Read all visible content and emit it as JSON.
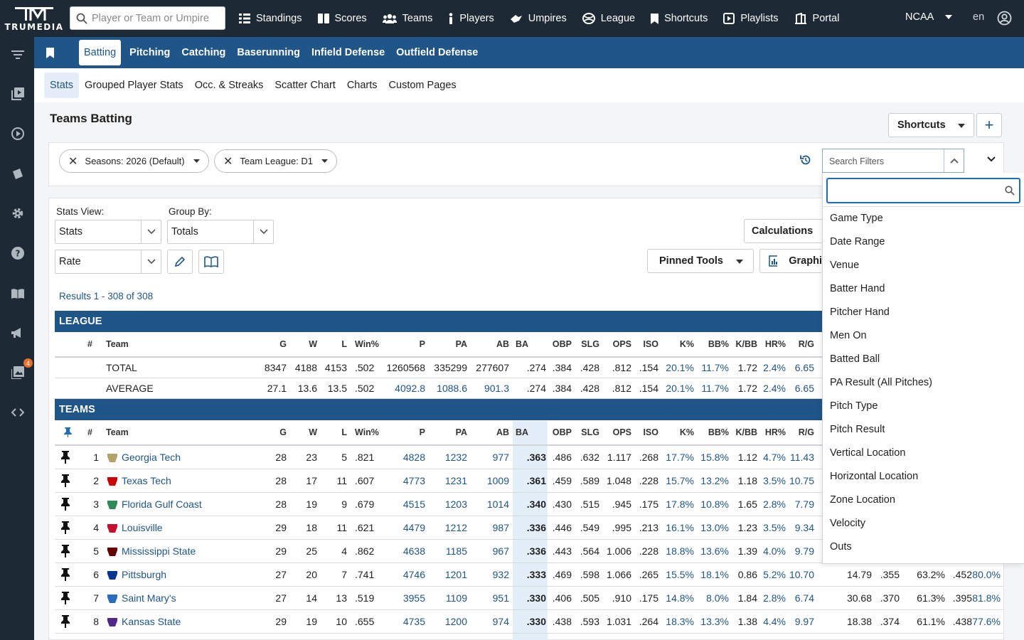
{
  "app": {
    "logo_text": "TRUMEDIA",
    "search_placeholder": "Player or Team or Umpire",
    "league": "NCAA",
    "lang": "en"
  },
  "topnav": [
    {
      "label": "Standings",
      "icon": "list-icon"
    },
    {
      "label": "Scores",
      "icon": "scoreboard-icon"
    },
    {
      "label": "Teams",
      "icon": "users-icon"
    },
    {
      "label": "Players",
      "icon": "player-icon"
    },
    {
      "label": "Umpires",
      "icon": "umpire-icon"
    },
    {
      "label": "League",
      "icon": "league-icon"
    },
    {
      "label": "Shortcuts",
      "icon": "bookmark-icon"
    },
    {
      "label": "Playlists",
      "icon": "playlist-icon"
    },
    {
      "label": "Portal",
      "icon": "portal-icon"
    }
  ],
  "sidebar": {
    "badge_count": "4"
  },
  "tabs": [
    "Batting",
    "Pitching",
    "Catching",
    "Baserunning",
    "Infield Defense",
    "Outfield Defense"
  ],
  "subtabs": [
    "Stats",
    "Grouped Player Stats",
    "Occ. & Streaks",
    "Scatter Chart",
    "Charts",
    "Custom Pages"
  ],
  "page": {
    "title": "Teams Batting",
    "shortcuts_label": "Shortcuts",
    "add_label": "+"
  },
  "filters": {
    "chips": [
      "Seasons: 2026 (Default)",
      "Team League: D1"
    ],
    "search_placeholder": "Search Filters"
  },
  "controls": {
    "stats_view_label": "Stats View:",
    "stats_view_value": "Stats",
    "group_by_label": "Group By:",
    "group_by_value": "Totals",
    "rate_value": "Rate",
    "calculations_label": "Calculations",
    "pinned_tools_label": "Pinned Tools",
    "graphics_label": "Graphi"
  },
  "results_text": "Results 1 - 308 of 308",
  "league_section": {
    "title": "LEAGUE",
    "rows": [
      {
        "team": "TOTAL",
        "G": "8347",
        "W": "4188",
        "L": "4153",
        "WinPct": ".502",
        "P": "1260568",
        "PA": "335299",
        "AB": "277607",
        "BA": ".274",
        "OBP": ".384",
        "SLG": ".428",
        "OPS": ".812",
        "ISO": ".154",
        "K": "20.1%",
        "BB": "11.7%",
        "KBB": "1.72",
        "HR": "2.4%",
        "RG": "6.65"
      },
      {
        "team": "AVERAGE",
        "G": "27.1",
        "W": "13.6",
        "L": "13.5",
        "WinPct": ".502",
        "P": "4092.8",
        "PA": "1088.6",
        "AB": "901.3",
        "BA": ".274",
        "OBP": ".384",
        "SLG": ".428",
        "OPS": ".812",
        "ISO": ".154",
        "K": "20.1%",
        "BB": "11.7%",
        "KBB": "1.72",
        "HR": "2.4%",
        "RG": "6.65"
      }
    ]
  },
  "columns": {
    "num": "#",
    "team": "Team",
    "G": "G",
    "W": "W",
    "L": "L",
    "WinPct": "Win%",
    "P": "P",
    "PA": "PA",
    "AB": "AB",
    "BA": "BA",
    "OBP": "OBP",
    "SLG": "SLG",
    "OPS": "OPS",
    "ISO": "ISO",
    "K": "K%",
    "BB": "BB%",
    "KBB": "K/BB",
    "HR": "HR%",
    "RG": "R/G"
  },
  "teams_section": {
    "title": "TEAMS",
    "rows": [
      {
        "rank": "1",
        "team": "Georgia Tech",
        "logo_color": "#b3a369",
        "G": "28",
        "W": "23",
        "L": "5",
        "WinPct": ".821",
        "P": "4828",
        "PA": "1232",
        "AB": "977",
        "BA": ".363",
        "OBP": ".486",
        "SLG": ".632",
        "OPS": "1.117",
        "ISO": ".268",
        "K": "17.7%",
        "BB": "15.8%",
        "KBB": "1.12",
        "HR": "4.7%",
        "RG": "11.43",
        "extra": []
      },
      {
        "rank": "2",
        "team": "Texas Tech",
        "logo_color": "#cc0000",
        "G": "28",
        "W": "17",
        "L": "11",
        "WinPct": ".607",
        "P": "4773",
        "PA": "1231",
        "AB": "1009",
        "BA": ".361",
        "OBP": ".459",
        "SLG": ".589",
        "OPS": "1.048",
        "ISO": ".228",
        "K": "15.7%",
        "BB": "13.2%",
        "KBB": "1.18",
        "HR": "3.5%",
        "RG": "10.75",
        "extra": []
      },
      {
        "rank": "3",
        "team": "Florida Gulf Coast",
        "logo_color": "#2e8b57",
        "G": "28",
        "W": "19",
        "L": "9",
        "WinPct": ".679",
        "P": "4515",
        "PA": "1203",
        "AB": "1014",
        "BA": ".340",
        "OBP": ".430",
        "SLG": ".515",
        "OPS": ".945",
        "ISO": ".175",
        "K": "17.8%",
        "BB": "10.8%",
        "KBB": "1.65",
        "HR": "2.8%",
        "RG": "7.79",
        "extra": []
      },
      {
        "rank": "4",
        "team": "Louisville",
        "logo_color": "#c8102e",
        "G": "29",
        "W": "18",
        "L": "11",
        "WinPct": ".621",
        "P": "4479",
        "PA": "1212",
        "AB": "987",
        "BA": ".336",
        "OBP": ".446",
        "SLG": ".549",
        "OPS": ".995",
        "ISO": ".213",
        "K": "16.1%",
        "BB": "13.0%",
        "KBB": "1.23",
        "HR": "3.5%",
        "RG": "9.34",
        "extra": []
      },
      {
        "rank": "5",
        "team": "Mississippi State",
        "logo_color": "#660000",
        "G": "29",
        "W": "25",
        "L": "4",
        "WinPct": ".862",
        "P": "4638",
        "PA": "1185",
        "AB": "967",
        "BA": ".336",
        "OBP": ".443",
        "SLG": ".564",
        "OPS": "1.006",
        "ISO": ".228",
        "K": "18.8%",
        "BB": "13.6%",
        "KBB": "1.39",
        "HR": "4.0%",
        "RG": "9.79",
        "extra": []
      },
      {
        "rank": "6",
        "team": "Pittsburgh",
        "logo_color": "#003594",
        "G": "27",
        "W": "20",
        "L": "7",
        "WinPct": ".741",
        "P": "4746",
        "PA": "1201",
        "AB": "932",
        "BA": ".333",
        "OBP": ".469",
        "SLG": ".598",
        "OPS": "1.066",
        "ISO": ".265",
        "K": "15.5%",
        "BB": "18.1%",
        "KBB": "0.86",
        "HR": "5.2%",
        "RG": "10.70",
        "extra": [
          "14.79",
          ".355",
          "63.2%",
          ".452",
          "80.0%"
        ]
      },
      {
        "rank": "7",
        "team": "Saint Mary's",
        "logo_color": "#2a6ebb",
        "G": "27",
        "W": "14",
        "L": "13",
        "WinPct": ".519",
        "P": "3955",
        "PA": "1109",
        "AB": "951",
        "BA": ".330",
        "OBP": ".406",
        "SLG": ".505",
        "OPS": ".910",
        "ISO": ".175",
        "K": "14.8%",
        "BB": "8.0%",
        "KBB": "1.84",
        "HR": "2.8%",
        "RG": "6.74",
        "extra": [
          "30.68",
          ".370",
          "61.3%",
          ".395",
          "81.8%"
        ]
      },
      {
        "rank": "8",
        "team": "Kansas State",
        "logo_color": "#512888",
        "G": "29",
        "W": "19",
        "L": "10",
        "WinPct": ".655",
        "P": "4735",
        "PA": "1200",
        "AB": "974",
        "BA": ".330",
        "OBP": ".438",
        "SLG": ".593",
        "OPS": "1.031",
        "ISO": ".264",
        "K": "18.3%",
        "BB": "13.3%",
        "KBB": "1.38",
        "HR": "4.4%",
        "RG": "9.97",
        "extra": [
          "18.38",
          ".374",
          "61.1%",
          ".438",
          "77.6%"
        ]
      }
    ]
  },
  "filter_dropdown": {
    "items": [
      "Game Type",
      "Date Range",
      "Venue",
      "Batter Hand",
      "Pitcher Hand",
      "Men On",
      "Batted Ball",
      "PA Result (All Pitches)",
      "Pitch Type",
      "Pitch Result",
      "Vertical Location",
      "Horizontal Location",
      "Zone Location",
      "Velocity",
      "Outs"
    ]
  }
}
